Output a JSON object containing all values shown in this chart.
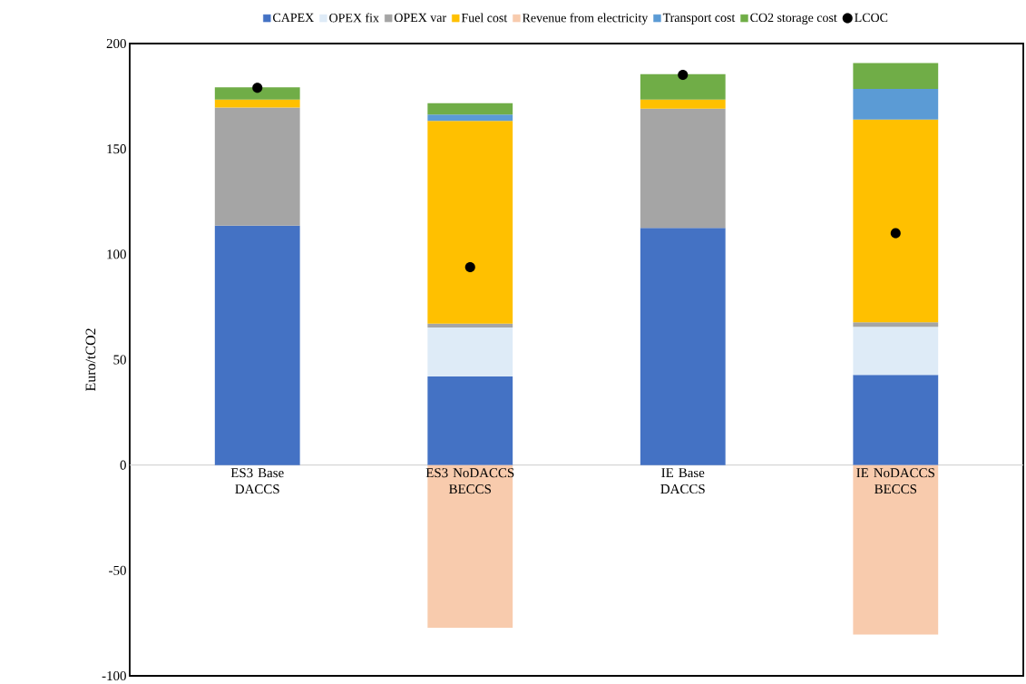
{
  "chart_data": {
    "type": "bar",
    "stacked": true,
    "ylabel": "Euro/tCO2",
    "categories": [
      "ES3 Base DACCS",
      "ES3 NoDACCS BECCS",
      "IE Base DACCS",
      "IE NoDACCS BECCS"
    ],
    "series": [
      {
        "name": "CAPEX",
        "color": "#4472c4",
        "values": [
          113.6,
          42,
          112.5,
          42.8
        ]
      },
      {
        "name": "OPEX fix",
        "color": "#deebf7",
        "values": [
          0,
          23.3,
          0,
          22.8
        ]
      },
      {
        "name": "OPEX var",
        "color": "#a5a5a5",
        "values": [
          56,
          1.8,
          56.6,
          2.1
        ]
      },
      {
        "name": "Fuel cost",
        "color": "#ffc000",
        "values": [
          3.8,
          96.2,
          4.3,
          96.2
        ]
      },
      {
        "name": "Revenue from electricity",
        "color": "#f8cbad",
        "values": [
          0,
          -77.2,
          0,
          -80.4
        ]
      },
      {
        "name": "Transport cost",
        "color": "#5b9bd5",
        "values": [
          0,
          3,
          0,
          14.6
        ]
      },
      {
        "name": "CO2 storage cost",
        "color": "#70ad47",
        "values": [
          5.8,
          5.4,
          12.1,
          12.2
        ]
      },
      {
        "name": "LCOC",
        "type": "scatter",
        "color": "#000000",
        "marker": "circle",
        "values": [
          179,
          93.9,
          185.1,
          110
        ]
      }
    ],
    "ylim": [
      -100,
      200
    ],
    "yticks": [
      -100,
      -50,
      0,
      50,
      100,
      150,
      200
    ],
    "grid": false,
    "legend": "top"
  }
}
